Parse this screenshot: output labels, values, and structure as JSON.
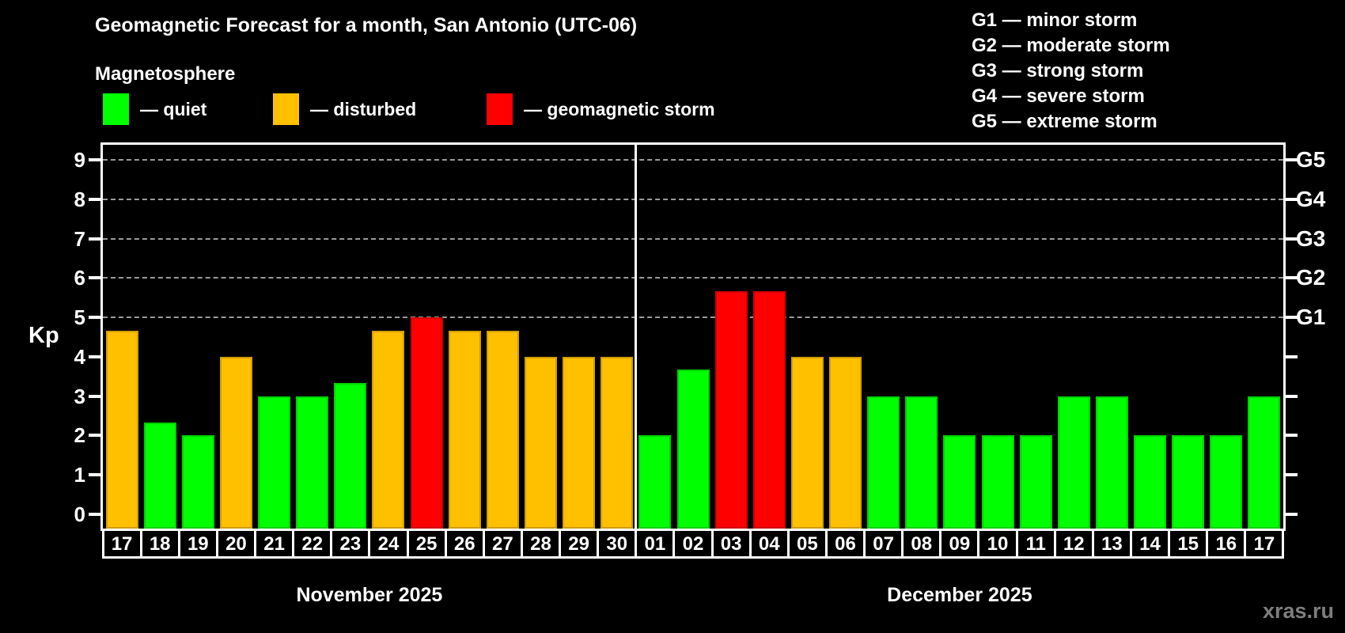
{
  "header": {
    "title": "Geomagnetic Forecast for a month, San Antonio (UTC-06)",
    "subtitle": "Magnetosphere"
  },
  "legend": {
    "items": [
      {
        "id": "quiet",
        "label": "— quiet",
        "color": "#00FF00"
      },
      {
        "id": "disturbed",
        "label": "— disturbed",
        "color": "#FFC000"
      },
      {
        "id": "storm",
        "label": "— geomagnetic storm",
        "color": "#FF0000"
      }
    ]
  },
  "g_legend": {
    "items": [
      "G1 — minor storm",
      "G2 — moderate storm",
      "G3 — strong storm",
      "G4 — severe storm",
      "G5 — extreme storm"
    ]
  },
  "chart_data": {
    "type": "bar",
    "title": "Geomagnetic Forecast for a month, San Antonio (UTC-06)",
    "ylabel": "Kp",
    "ylim": [
      0,
      9
    ],
    "y_ticks": [
      0,
      1,
      2,
      3,
      4,
      5,
      6,
      7,
      8,
      9
    ],
    "grid_levels": [
      5,
      6,
      7,
      8,
      9
    ],
    "grid": "dashed-on-storm-levels-only",
    "right_axis_labels": [
      {
        "label": "G1",
        "kp": 5
      },
      {
        "label": "G2",
        "kp": 6
      },
      {
        "label": "G3",
        "kp": 7
      },
      {
        "label": "G4",
        "kp": 8
      },
      {
        "label": "G5",
        "kp": 9
      }
    ],
    "categories": [
      "17",
      "18",
      "19",
      "20",
      "21",
      "22",
      "23",
      "24",
      "25",
      "26",
      "27",
      "28",
      "29",
      "30",
      "01",
      "02",
      "03",
      "04",
      "05",
      "06",
      "07",
      "08",
      "09",
      "10",
      "11",
      "12",
      "13",
      "14",
      "15",
      "16",
      "17"
    ],
    "values": [
      4.67,
      2.33,
      2,
      4,
      3,
      3,
      3.33,
      4.67,
      5,
      4.67,
      4.67,
      4,
      4,
      4,
      2,
      3.67,
      5.67,
      5.67,
      4,
      4,
      3,
      3,
      2,
      2,
      2,
      3,
      3,
      2,
      2,
      2,
      3
    ],
    "statuses": [
      "disturbed",
      "quiet",
      "quiet",
      "disturbed",
      "quiet",
      "quiet",
      "quiet",
      "disturbed",
      "storm",
      "disturbed",
      "disturbed",
      "disturbed",
      "disturbed",
      "disturbed",
      "quiet",
      "quiet",
      "storm",
      "storm",
      "disturbed",
      "disturbed",
      "quiet",
      "quiet",
      "quiet",
      "quiet",
      "quiet",
      "quiet",
      "quiet",
      "quiet",
      "quiet",
      "quiet",
      "quiet"
    ],
    "colors": {
      "quiet": "#00FF00",
      "disturbed": "#FFC000",
      "storm": "#FF0000"
    },
    "months": [
      {
        "label": "November 2025",
        "start": 0,
        "count": 14
      },
      {
        "label": "December 2025",
        "start": 14,
        "count": 17
      }
    ],
    "separator_after_index": 13
  },
  "watermark": "xras.ru"
}
